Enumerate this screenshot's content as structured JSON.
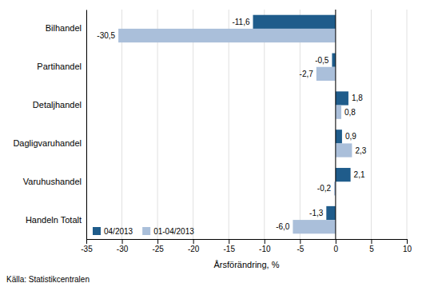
{
  "chart_data": {
    "type": "bar",
    "orientation": "horizontal",
    "categories": [
      "Bilhandel",
      "Partihandel",
      "Detaljhandel",
      "Dagligvaruhandel",
      "Varuhushandel",
      "Handeln Totalt"
    ],
    "series": [
      {
        "name": "04/2013",
        "color": "#1F5C8B",
        "values": [
          -11.6,
          -0.5,
          1.8,
          0.9,
          2.1,
          -1.3
        ],
        "value_labels": [
          "-11,6",
          "-0,5",
          "1,8",
          "0,9",
          "2,1",
          "-1,3"
        ]
      },
      {
        "name": "01-04/2013",
        "color": "#AABFDA",
        "values": [
          -30.5,
          -2.7,
          0.8,
          2.3,
          -0.2,
          -6.0
        ],
        "value_labels": [
          "-30,5",
          "-2,7",
          "0,8",
          "2,3",
          "-0,2",
          "-6,0"
        ]
      }
    ],
    "xlabel": "Årsförändring, %",
    "xlim": [
      -35,
      10
    ],
    "xticks": [
      -35,
      -30,
      -25,
      -20,
      -15,
      -10,
      -5,
      0,
      5,
      10
    ],
    "grid": true,
    "legend": "lower left",
    "data_labels": true,
    "annotations": [
      "Källa: Statistikcentralen"
    ]
  }
}
